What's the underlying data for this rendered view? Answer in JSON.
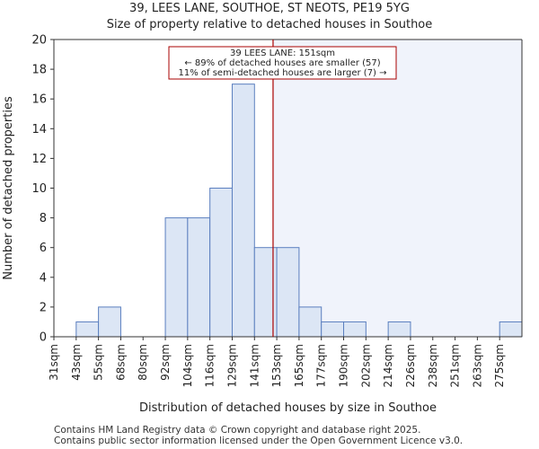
{
  "title_line1": "39, LEES LANE, SOUTHOE, ST NEOTS, PE19 5YG",
  "title_line2": "Size of property relative to detached houses in Southoe",
  "footer_line1": "Contains HM Land Registry data © Crown copyright and database right 2025.",
  "footer_line2": "Contains public sector information licensed under the Open Government Licence v3.0.",
  "colors": {
    "bar_fill": "#dce6f5",
    "bar_stroke": "#5b7fbf",
    "highlight_region": "#f0f3fb",
    "marker_line": "#aa0000",
    "annotation_border": "#aa0000"
  },
  "chart_data": {
    "type": "bar",
    "xlabel": "Distribution of detached houses by size in Southoe",
    "ylabel": "Number of detached properties",
    "ylim": [
      0,
      20
    ],
    "yticks": [
      0,
      2,
      4,
      6,
      8,
      10,
      12,
      14,
      16,
      18,
      20
    ],
    "categories": [
      "31sqm",
      "43sqm",
      "55sqm",
      "68sqm",
      "80sqm",
      "92sqm",
      "104sqm",
      "116sqm",
      "129sqm",
      "141sqm",
      "153sqm",
      "165sqm",
      "177sqm",
      "190sqm",
      "202sqm",
      "214sqm",
      "226sqm",
      "238sqm",
      "251sqm",
      "263sqm",
      "275sqm"
    ],
    "bin_edges": [
      31,
      43,
      55,
      68,
      80,
      92,
      104,
      116,
      129,
      141,
      153,
      165,
      177,
      190,
      202,
      214,
      226,
      238,
      251,
      263,
      275
    ],
    "values": [
      0,
      1,
      2,
      0,
      0,
      8,
      8,
      10,
      17,
      6,
      6,
      2,
      1,
      1,
      0,
      1,
      0,
      0,
      0,
      0,
      1
    ],
    "grid": false,
    "marker": {
      "value": 151,
      "label_line1": "39 LEES LANE: 151sqm",
      "label_line2": "← 89% of detached houses are smaller (57)",
      "label_line3": "11% of semi-detached houses are larger (7) →"
    }
  }
}
